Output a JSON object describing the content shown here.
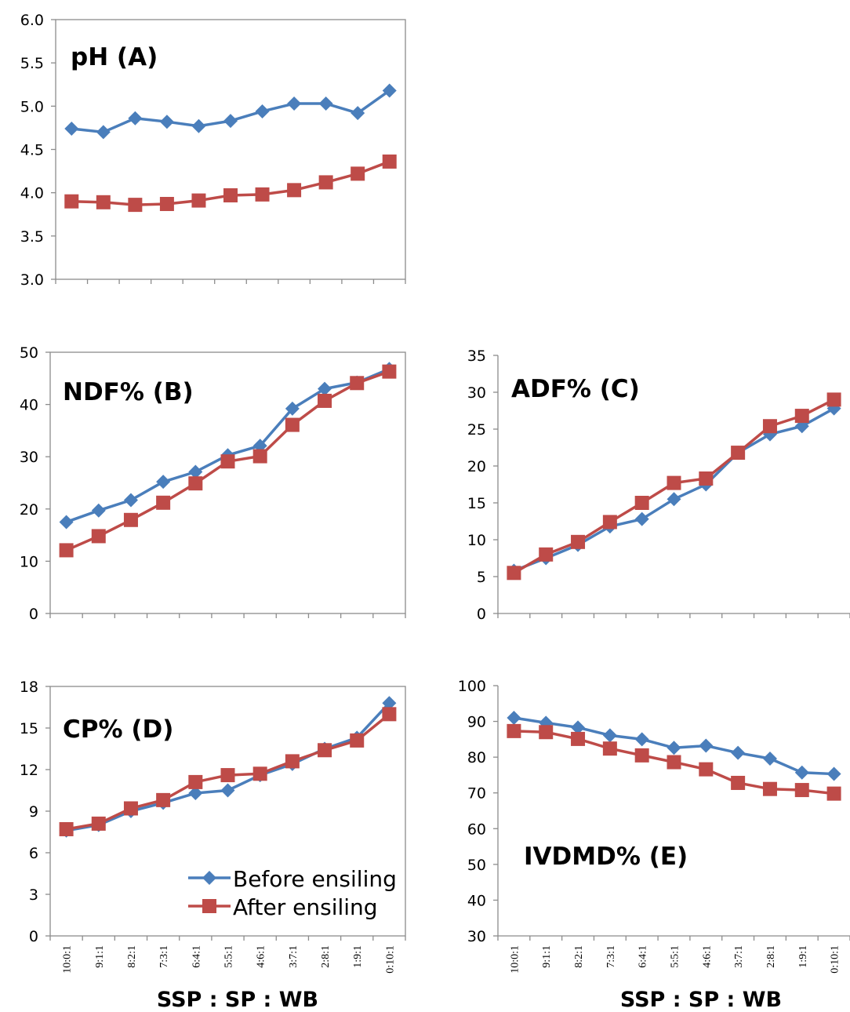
{
  "colors": {
    "before": "#4a7ebb",
    "after": "#be4b48"
  },
  "legend": {
    "before": "Before ensiling",
    "after": "After ensiling"
  },
  "xlabel": "SSP : SP : WB",
  "chart_data": [
    {
      "id": "A",
      "type": "line",
      "title": "pH (A)",
      "xlabel": "",
      "categories": [
        "10:0:1",
        "9:1:1",
        "8:2:1",
        "7:3:1",
        "6:4:1",
        "5:5:1",
        "4:6:1",
        "3:7:1",
        "2:8:1",
        "1:9:1",
        "0:10:1"
      ],
      "ylim": [
        3.0,
        6.0
      ],
      "yticks": [
        "3.0",
        "3.5",
        "4.0",
        "4.5",
        "5.0",
        "5.5",
        "6.0"
      ],
      "series": [
        {
          "name": "Before ensiling",
          "values": [
            4.74,
            4.7,
            4.86,
            4.82,
            4.77,
            4.83,
            4.94,
            5.03,
            5.03,
            4.92,
            5.18
          ]
        },
        {
          "name": "After ensiling",
          "values": [
            3.9,
            3.89,
            3.86,
            3.87,
            3.91,
            3.97,
            3.98,
            4.03,
            4.12,
            4.22,
            4.36
          ]
        }
      ]
    },
    {
      "id": "B",
      "type": "line",
      "title": "NDF% (B)",
      "xlabel": "",
      "categories": [
        "10:0:1",
        "9:1:1",
        "8:2:1",
        "7:3:1",
        "6:4:1",
        "5:5:1",
        "4:6:1",
        "3:7:1",
        "2:8:1",
        "1:9:1",
        "0:10:1"
      ],
      "ylim": [
        0,
        50
      ],
      "yticks": [
        "0",
        "10",
        "20",
        "30",
        "40",
        "50"
      ],
      "series": [
        {
          "name": "Before ensiling",
          "values": [
            17.5,
            19.7,
            21.7,
            25.2,
            27.1,
            30.3,
            32.1,
            39.2,
            43.0,
            44.2,
            46.8
          ]
        },
        {
          "name": "After ensiling",
          "values": [
            12.1,
            14.8,
            17.9,
            21.2,
            24.9,
            29.1,
            30.1,
            36.1,
            40.7,
            44.1,
            46.3
          ]
        }
      ]
    },
    {
      "id": "C",
      "type": "line",
      "title": "ADF% (C)",
      "xlabel": "",
      "categories": [
        "10:0:1",
        "9:1:1",
        "8:2:1",
        "7:3:1",
        "6:4:1",
        "5:5:1",
        "4:6:1",
        "3:7:1",
        "2:8:1",
        "1:9:1",
        "0:10:1"
      ],
      "ylim": [
        0,
        35
      ],
      "yticks": [
        "0",
        "5",
        "10",
        "15",
        "20",
        "25",
        "30",
        "35"
      ],
      "series": [
        {
          "name": "Before ensiling",
          "values": [
            5.8,
            7.5,
            9.3,
            11.8,
            12.8,
            15.5,
            17.5,
            21.8,
            24.3,
            25.4,
            27.8
          ]
        },
        {
          "name": "After ensiling",
          "values": [
            5.5,
            8.0,
            9.7,
            12.4,
            15.0,
            17.7,
            18.3,
            21.8,
            25.4,
            26.8,
            29.0
          ]
        }
      ]
    },
    {
      "id": "D",
      "type": "line",
      "title": "CP% (D)",
      "xlabel": "SSP : SP : WB",
      "categories": [
        "10:0:1",
        "9:1:1",
        "8:2:1",
        "7:3:1",
        "6:4:1",
        "5:5:1",
        "4:6:1",
        "3:7:1",
        "2:8:1",
        "1:9:1",
        "0:10:1"
      ],
      "ylim": [
        0,
        18
      ],
      "yticks": [
        "0",
        "3",
        "6",
        "9",
        "12",
        "15",
        "18"
      ],
      "series": [
        {
          "name": "Before ensiling",
          "values": [
            7.6,
            8.0,
            9.0,
            9.6,
            10.3,
            10.5,
            11.6,
            12.4,
            13.5,
            14.3,
            16.8
          ]
        },
        {
          "name": "After ensiling",
          "values": [
            7.7,
            8.1,
            9.2,
            9.8,
            11.1,
            11.6,
            11.7,
            12.6,
            13.4,
            14.1,
            16.0
          ]
        }
      ]
    },
    {
      "id": "E",
      "type": "line",
      "title": "IVDMD% (E)",
      "xlabel": "SSP : SP : WB",
      "categories": [
        "10:0:1",
        "9:1:1",
        "8:2:1",
        "7:3:1",
        "6:4:1",
        "5:5:1",
        "4:6:1",
        "3:7:1",
        "2:8:1",
        "1:9:1",
        "0:10:1"
      ],
      "ylim": [
        30,
        100
      ],
      "yticks": [
        "30",
        "40",
        "50",
        "60",
        "70",
        "80",
        "90",
        "100"
      ],
      "series": [
        {
          "name": "Before ensiling",
          "values": [
            91.0,
            89.6,
            88.3,
            86.1,
            85.0,
            82.6,
            83.2,
            81.2,
            79.6,
            75.7,
            75.3
          ]
        },
        {
          "name": "After ensiling",
          "values": [
            87.3,
            87.0,
            85.1,
            82.4,
            80.5,
            78.6,
            76.6,
            72.8,
            71.1,
            70.8,
            69.8
          ]
        }
      ]
    }
  ]
}
